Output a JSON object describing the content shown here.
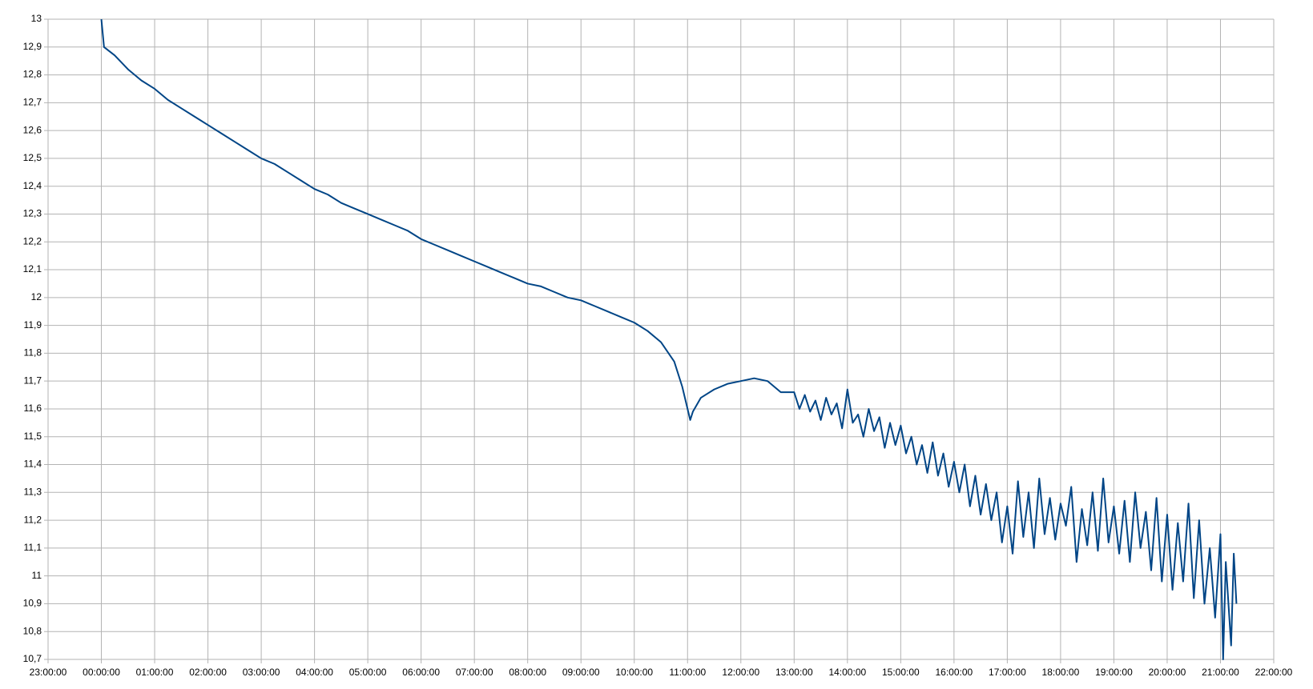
{
  "chart_data": {
    "type": "line",
    "color": "#004586",
    "grid": true,
    "xlim": [
      -1,
      22
    ],
    "xticks": [
      {
        "value": -1,
        "label": "23:00:00"
      },
      {
        "value": 0,
        "label": "00:00:00"
      },
      {
        "value": 1,
        "label": "01:00:00"
      },
      {
        "value": 2,
        "label": "02:00:00"
      },
      {
        "value": 3,
        "label": "03:00:00"
      },
      {
        "value": 4,
        "label": "04:00:00"
      },
      {
        "value": 5,
        "label": "05:00:00"
      },
      {
        "value": 6,
        "label": "06:00:00"
      },
      {
        "value": 7,
        "label": "07:00:00"
      },
      {
        "value": 8,
        "label": "08:00:00"
      },
      {
        "value": 9,
        "label": "09:00:00"
      },
      {
        "value": 10,
        "label": "10:00:00"
      },
      {
        "value": 11,
        "label": "11:00:00"
      },
      {
        "value": 12,
        "label": "12:00:00"
      },
      {
        "value": 13,
        "label": "13:00:00"
      },
      {
        "value": 14,
        "label": "14:00:00"
      },
      {
        "value": 15,
        "label": "15:00:00"
      },
      {
        "value": 16,
        "label": "16:00:00"
      },
      {
        "value": 17,
        "label": "17:00:00"
      },
      {
        "value": 18,
        "label": "18:00:00"
      },
      {
        "value": 19,
        "label": "19:00:00"
      },
      {
        "value": 20,
        "label": "20:00:00"
      },
      {
        "value": 21,
        "label": "21:00:00"
      },
      {
        "value": 22,
        "label": "22:00:00"
      }
    ],
    "ylim": [
      10.7,
      13
    ],
    "yticks": [
      {
        "value": 10.7,
        "label": "10,7"
      },
      {
        "value": 10.8,
        "label": "10,8"
      },
      {
        "value": 10.9,
        "label": "10,9"
      },
      11,
      {
        "value": 11.1,
        "label": "11,1"
      },
      {
        "value": 11.2,
        "label": "11,2"
      },
      {
        "value": 11.3,
        "label": "11,3"
      },
      {
        "value": 11.4,
        "label": "11,4"
      },
      {
        "value": 11.5,
        "label": "11,5"
      },
      {
        "value": 11.6,
        "label": "11,6"
      },
      {
        "value": 11.7,
        "label": "11,7"
      },
      {
        "value": 11.8,
        "label": "11,8"
      },
      {
        "value": 11.9,
        "label": "11,9"
      },
      12,
      {
        "value": 12.1,
        "label": "12,1"
      },
      {
        "value": 12.2,
        "label": "12,2"
      },
      {
        "value": 12.3,
        "label": "12,3"
      },
      {
        "value": 12.4,
        "label": "12,4"
      },
      {
        "value": 12.5,
        "label": "12,5"
      },
      {
        "value": 12.6,
        "label": "12,6"
      },
      {
        "value": 12.7,
        "label": "12,7"
      },
      {
        "value": 12.8,
        "label": "12,8"
      },
      {
        "value": 12.9,
        "label": "12,9"
      },
      13
    ],
    "x": [
      0,
      0.05,
      0.25,
      0.5,
      0.75,
      1,
      1.25,
      1.5,
      1.75,
      2,
      2.25,
      2.5,
      2.75,
      3,
      3.25,
      3.5,
      3.75,
      4,
      4.25,
      4.5,
      4.75,
      5,
      5.25,
      5.5,
      5.75,
      6,
      6.25,
      6.5,
      6.75,
      7,
      7.25,
      7.5,
      7.75,
      8,
      8.25,
      8.5,
      8.75,
      9,
      9.25,
      9.5,
      9.75,
      10,
      10.25,
      10.5,
      10.75,
      10.9,
      11.05,
      11.1,
      11.25,
      11.5,
      11.75,
      12,
      12.25,
      12.5,
      12.75,
      13,
      13.1,
      13.2,
      13.3,
      13.4,
      13.5,
      13.6,
      13.7,
      13.8,
      13.9,
      14,
      14.1,
      14.2,
      14.3,
      14.4,
      14.5,
      14.6,
      14.7,
      14.8,
      14.9,
      15,
      15.1,
      15.2,
      15.3,
      15.4,
      15.5,
      15.6,
      15.7,
      15.8,
      15.9,
      16,
      16.1,
      16.2,
      16.3,
      16.4,
      16.5,
      16.6,
      16.7,
      16.8,
      16.9,
      17,
      17.1,
      17.2,
      17.3,
      17.4,
      17.5,
      17.6,
      17.7,
      17.8,
      17.9,
      18,
      18.1,
      18.2,
      18.3,
      18.4,
      18.5,
      18.6,
      18.7,
      18.8,
      18.9,
      19,
      19.1,
      19.2,
      19.3,
      19.4,
      19.5,
      19.6,
      19.7,
      19.8,
      19.9,
      20,
      20.1,
      20.2,
      20.3,
      20.4,
      20.5,
      20.6,
      20.7,
      20.8,
      20.9,
      21,
      21.05,
      21.1,
      21.2,
      21.25,
      21.3
    ],
    "values": [
      13,
      12.9,
      12.87,
      12.82,
      12.78,
      12.75,
      12.71,
      12.68,
      12.65,
      12.62,
      12.59,
      12.56,
      12.53,
      12.5,
      12.48,
      12.45,
      12.42,
      12.39,
      12.37,
      12.34,
      12.32,
      12.3,
      12.28,
      12.26,
      12.24,
      12.21,
      12.19,
      12.17,
      12.15,
      12.13,
      12.11,
      12.09,
      12.07,
      12.05,
      12.04,
      12.02,
      12.0,
      11.99,
      11.97,
      11.95,
      11.93,
      11.91,
      11.88,
      11.84,
      11.77,
      11.68,
      11.56,
      11.59,
      11.64,
      11.67,
      11.69,
      11.7,
      11.71,
      11.7,
      11.66,
      11.66,
      11.6,
      11.65,
      11.59,
      11.63,
      11.56,
      11.64,
      11.58,
      11.62,
      11.53,
      11.67,
      11.55,
      11.58,
      11.5,
      11.6,
      11.52,
      11.57,
      11.46,
      11.55,
      11.47,
      11.54,
      11.44,
      11.5,
      11.4,
      11.47,
      11.37,
      11.48,
      11.36,
      11.44,
      11.32,
      11.41,
      11.3,
      11.4,
      11.25,
      11.36,
      11.22,
      11.33,
      11.2,
      11.3,
      11.12,
      11.25,
      11.08,
      11.34,
      11.14,
      11.3,
      11.1,
      11.35,
      11.15,
      11.28,
      11.13,
      11.26,
      11.18,
      11.32,
      11.05,
      11.24,
      11.11,
      11.3,
      11.09,
      11.35,
      11.12,
      11.25,
      11.08,
      11.27,
      11.05,
      11.3,
      11.1,
      11.23,
      11.02,
      11.28,
      10.98,
      11.22,
      10.95,
      11.19,
      10.98,
      11.26,
      10.92,
      11.2,
      10.9,
      11.1,
      10.85,
      11.15,
      10.7,
      11.05,
      10.75,
      11.08,
      10.9
    ]
  }
}
